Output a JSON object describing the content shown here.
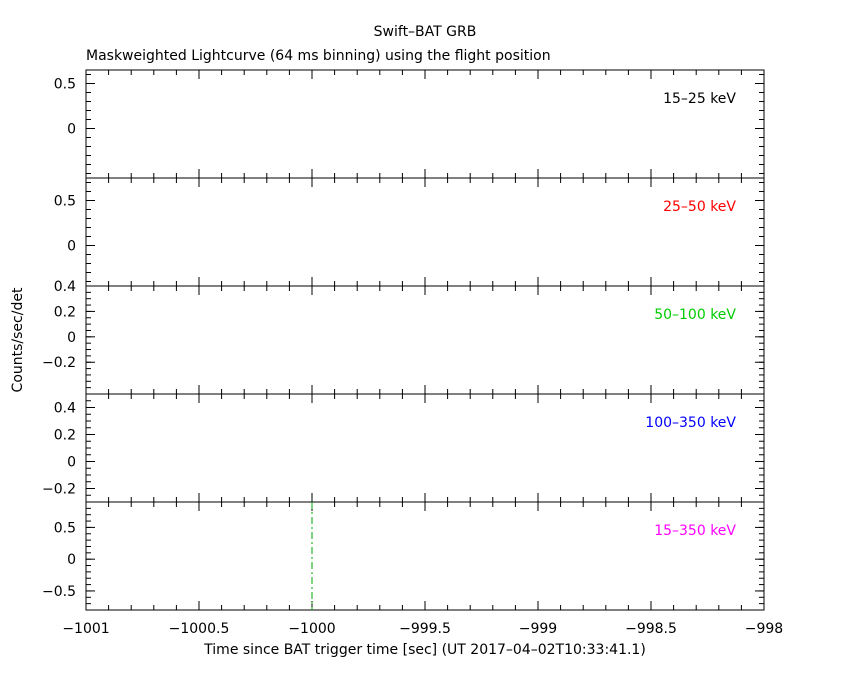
{
  "title": "Swift–BAT GRB",
  "subtitle": "Maskweighted Lightcurve (64 ms binning) using the flight position",
  "chart_data": {
    "type": "line",
    "title": "Swift–BAT GRB",
    "subtitle": "Maskweighted Lightcurve (64 ms binning) using the flight position",
    "xlabel": "Time since BAT trigger time [sec] (UT 2017–04–02T10:33:41.1)",
    "ylabel": "Counts/sec/det",
    "xlim": [
      -1001,
      -998
    ],
    "x_ticks": [
      -1001,
      -1000.5,
      -1000,
      -999.5,
      -999,
      -998.5,
      -998
    ],
    "x_tick_labels": [
      "−1001",
      "−1000.5",
      "−1000",
      "−999.5",
      "−999",
      "−998.5",
      "−998"
    ],
    "grid": false,
    "panels": [
      {
        "name": "15–25 keV",
        "color": "#000000",
        "ylim": [
          -0.55,
          0.65
        ],
        "y_ticks": [
          0.5,
          0
        ],
        "y_tick_labels": [
          "0.5",
          "0"
        ],
        "minor_step": 0.1
      },
      {
        "name": "25–50 keV",
        "color": "#ff0000",
        "ylim": [
          -0.45,
          0.75
        ],
        "y_ticks": [
          0.5,
          0
        ],
        "y_tick_labels": [
          "0.5",
          "0"
        ],
        "minor_step": 0.1
      },
      {
        "name": "50–100 keV",
        "color": "#00cc00",
        "ylim": [
          -0.45,
          0.4
        ],
        "y_ticks": [
          0.4,
          0.2,
          0,
          -0.2
        ],
        "y_tick_labels": [
          "0.4",
          "0.2",
          "0",
          "−0.2"
        ],
        "minor_step": 0.05
      },
      {
        "name": "100–350 keV",
        "color": "#0000ff",
        "ylim": [
          -0.3,
          0.5
        ],
        "y_ticks": [
          0.4,
          0.2,
          0,
          -0.2
        ],
        "y_tick_labels": [
          "0.4",
          "0.2",
          "0",
          "−0.2"
        ],
        "minor_step": 0.05
      },
      {
        "name": "15–350 keV",
        "color": "#ff00ff",
        "ylim": [
          -0.8,
          0.9
        ],
        "y_ticks": [
          0.5,
          0,
          -0.5
        ],
        "y_tick_labels": [
          "0.5",
          "0",
          "−0.5"
        ],
        "minor_step": 0.1
      }
    ],
    "trigger_marker": {
      "x": -1000,
      "color": "#00aa00",
      "style": "dash-dot",
      "panel_index": 4
    }
  }
}
